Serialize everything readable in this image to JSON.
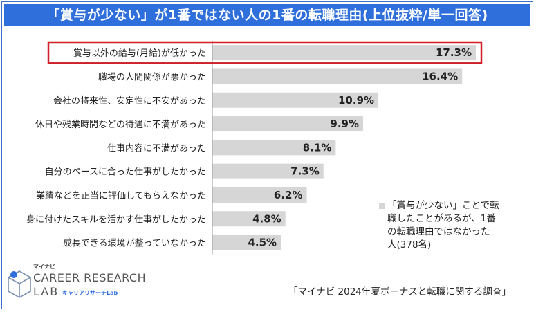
{
  "chart_data": {
    "type": "bar",
    "orientation": "horizontal",
    "title": "「賞与が少ない」が1番ではない人の1番の転職理由(上位抜粋/単一回答)",
    "categories": [
      "賞与以外の給与(月給)が低かった",
      "職場の人間関係が悪かった",
      "会社の将来性、安定性に不安があった",
      "休日や残業時間などの待遇に不満があった",
      "仕事内容に不満があった",
      "自分のペースに合った仕事がしたかった",
      "業績などを正当に評価してもらえなかった",
      "身に付けたスキルを活かす仕事がしたかった",
      "成長できる環境が整っていなかった"
    ],
    "values": [
      17.3,
      16.4,
      10.9,
      9.9,
      8.1,
      7.3,
      6.2,
      4.8,
      4.5
    ],
    "value_labels": [
      "17.3%",
      "16.4%",
      "10.9%",
      "9.9%",
      "8.1%",
      "7.3%",
      "6.2%",
      "4.8%",
      "4.5%"
    ],
    "highlight_index": 0,
    "xlim": [
      0,
      17.3
    ],
    "series_name": "「賞与が少ない」ことで転職したことがあるが、1番の転職理由ではなかった人(378名)",
    "legend_lines": [
      "「賞与が少ない」ことで転",
      "職したことがあるが、1番",
      "の転職理由ではなかった",
      "人(378名)"
    ],
    "legend_position": "bottom-right",
    "grid": false
  },
  "colors": {
    "title_bg": "#2f6fdc",
    "bar": "#d6d6d6",
    "highlight_border": "#d0212b",
    "axis": "#999999"
  },
  "source": "「マイナビ 2024年夏ボーナスと転職に関する調査」",
  "logo": {
    "top": "マイナビ",
    "main": "CAREER RESEARCH",
    "sub": "LAB",
    "kana": "キャリアリサーチLab"
  }
}
